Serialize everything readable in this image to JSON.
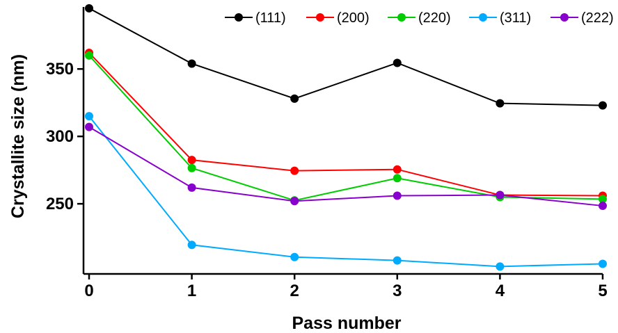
{
  "chart_data": {
    "type": "line",
    "title": "",
    "xlabel": "Pass number",
    "ylabel": "Crystallite size (nm)",
    "x": [
      0,
      1,
      2,
      3,
      4,
      5
    ],
    "xticks": [
      "0",
      "1",
      "2",
      "3",
      "4",
      "5"
    ],
    "yticks": [
      "250",
      "300",
      "350"
    ],
    "xlim": [
      0,
      5
    ],
    "ylim": [
      198,
      396
    ],
    "grid": false,
    "legend_position": "top-right",
    "series": [
      {
        "name": "(111)",
        "color": "#000000",
        "values": [
          395,
          354,
          328,
          354.5,
          324.5,
          323
        ]
      },
      {
        "name": "(200)",
        "color": "#ff0000",
        "values": [
          362,
          282.5,
          274.5,
          275.5,
          256.5,
          256
        ]
      },
      {
        "name": "(220)",
        "color": "#00cc00",
        "values": [
          360,
          276.5,
          252.5,
          269,
          255,
          253.5
        ]
      },
      {
        "name": "(311)",
        "color": "#00aaff",
        "values": [
          315,
          219.5,
          210.5,
          208,
          203.5,
          205.5
        ]
      },
      {
        "name": "(222)",
        "color": "#8800cc",
        "values": [
          307,
          262,
          252,
          256,
          256.5,
          248.5
        ]
      }
    ]
  }
}
